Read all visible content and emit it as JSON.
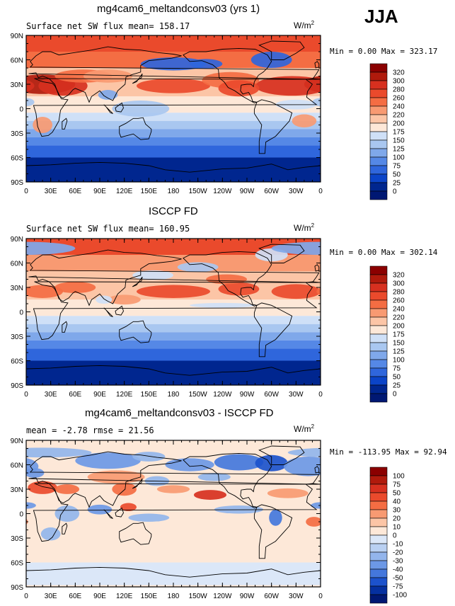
{
  "season": "JJA",
  "unit_prefix": "W/m",
  "unit_exp": "2",
  "lat_labels": [
    "90N",
    "60N",
    "30N",
    "0",
    "30S",
    "60S",
    "90S"
  ],
  "lon_labels": [
    "0",
    "30E",
    "60E",
    "90E",
    "120E",
    "150E",
    "180",
    "150W",
    "120W",
    "90W",
    "60W",
    "30W",
    "0"
  ],
  "panels": [
    {
      "title": "mg4cam6_meltandconsv03 (yrs 1)",
      "subtitle": "Surface net SW flux      mean= 158.17",
      "minmax": "Min =    0.00 Max = 323.17",
      "colorbar_labels": [
        "320",
        "300",
        "280",
        "260",
        "240",
        "220",
        "200",
        "175",
        "150",
        "125",
        "100",
        "75",
        "50",
        "25",
        "0"
      ],
      "colors": [
        "#8b0000",
        "#b01a0c",
        "#d7301f",
        "#ea4a2c",
        "#f46d43",
        "#f89a72",
        "#fcc5a6",
        "#fde8d8",
        "#cfe0f7",
        "#a9c7f0",
        "#7fa8ea",
        "#5588e6",
        "#2f66dc",
        "#0b44c8",
        "#00268f",
        "#001873"
      ]
    },
    {
      "title": "ISCCP FD",
      "subtitle": "Surface net SW flux      mean= 160.95",
      "minmax": "Min =    0.00 Max = 302.14",
      "colorbar_labels": [
        "320",
        "300",
        "280",
        "260",
        "240",
        "220",
        "200",
        "175",
        "150",
        "125",
        "100",
        "75",
        "50",
        "25",
        "0"
      ],
      "colors": [
        "#8b0000",
        "#b01a0c",
        "#d7301f",
        "#ea4a2c",
        "#f46d43",
        "#f89a72",
        "#fcc5a6",
        "#fde8d8",
        "#cfe0f7",
        "#a9c7f0",
        "#7fa8ea",
        "#5588e6",
        "#2f66dc",
        "#0b44c8",
        "#00268f",
        "#001873"
      ]
    },
    {
      "title": "mg4cam6_meltandconsv03 - ISCCP FD",
      "subtitle": "mean =  -2.78       rmse =   21.56",
      "minmax": "Min = -113.95 Max =  92.94",
      "colorbar_labels": [
        "100",
        "75",
        "50",
        "40",
        "30",
        "20",
        "10",
        "0",
        "-10",
        "-20",
        "-30",
        "-40",
        "-50",
        "-75",
        "-100"
      ],
      "colors": [
        "#8b0000",
        "#b01a0c",
        "#d7301f",
        "#ea4a2c",
        "#f46d43",
        "#f89a72",
        "#fcc5a6",
        "#fde8d8",
        "#dbe7f8",
        "#b9d0f2",
        "#93b5ec",
        "#6c98e6",
        "#4477dc",
        "#1c52cc",
        "#0530a0",
        "#001873"
      ]
    }
  ]
}
